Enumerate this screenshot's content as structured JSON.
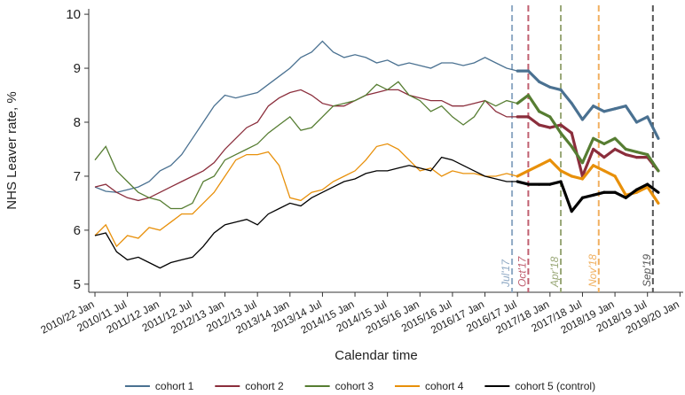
{
  "chart_data": {
    "type": "line",
    "y_label": "NHS Leaver rate, %",
    "x_label": "Calendar time",
    "x": [
      0,
      2,
      4,
      6,
      8,
      10,
      12,
      14,
      16,
      18,
      20,
      22,
      24,
      26,
      28,
      30,
      32,
      34,
      36,
      38,
      40,
      42,
      44,
      46,
      48,
      50,
      52,
      54,
      56,
      58,
      60,
      62,
      64,
      66,
      68,
      70,
      72,
      74,
      76,
      78,
      80,
      82,
      84,
      86,
      88,
      90,
      92,
      94,
      96,
      98,
      100,
      102,
      104
    ],
    "series": [
      {
        "name": "cohort 1",
        "color": "#4a7191",
        "values": [
          6.8,
          6.72,
          6.7,
          6.75,
          6.8,
          6.9,
          7.1,
          7.2,
          7.4,
          7.7,
          8.0,
          8.3,
          8.5,
          8.45,
          8.5,
          8.55,
          8.7,
          8.85,
          9.0,
          9.2,
          9.3,
          9.5,
          9.3,
          9.2,
          9.25,
          9.2,
          9.1,
          9.15,
          9.05,
          9.1,
          9.05,
          9.0,
          9.1,
          9.1,
          9.05,
          9.1,
          9.2,
          9.1,
          9.0,
          8.95,
          8.95,
          8.75,
          8.65,
          8.6,
          8.35,
          8.05,
          8.3,
          8.2,
          8.25,
          8.3,
          8.0,
          8.1,
          7.7
        ]
      },
      {
        "name": "cohort 2",
        "color": "#8b2e3c",
        "values": [
          6.8,
          6.85,
          6.7,
          6.6,
          6.55,
          6.6,
          6.7,
          6.8,
          6.9,
          7.0,
          7.1,
          7.25,
          7.5,
          7.7,
          7.9,
          8.0,
          8.3,
          8.45,
          8.55,
          8.6,
          8.5,
          8.35,
          8.3,
          8.3,
          8.4,
          8.5,
          8.55,
          8.6,
          8.6,
          8.5,
          8.45,
          8.4,
          8.4,
          8.3,
          8.3,
          8.35,
          8.4,
          8.2,
          8.1,
          8.1,
          8.1,
          7.95,
          7.9,
          7.95,
          7.8,
          7.0,
          7.5,
          7.35,
          7.5,
          7.4,
          7.35,
          7.35,
          7.1
        ]
      },
      {
        "name": "cohort 3",
        "color": "#567d32",
        "values": [
          7.3,
          7.55,
          7.1,
          6.9,
          6.7,
          6.6,
          6.55,
          6.4,
          6.4,
          6.5,
          6.9,
          7.0,
          7.3,
          7.4,
          7.5,
          7.6,
          7.8,
          7.95,
          8.1,
          7.85,
          7.9,
          8.1,
          8.3,
          8.35,
          8.4,
          8.5,
          8.7,
          8.6,
          8.75,
          8.5,
          8.4,
          8.2,
          8.3,
          8.1,
          7.95,
          8.1,
          8.4,
          8.3,
          8.4,
          8.35,
          8.5,
          8.2,
          8.1,
          7.8,
          7.55,
          7.25,
          7.7,
          7.6,
          7.7,
          7.5,
          7.45,
          7.4,
          7.1
        ]
      },
      {
        "name": "cohort 4",
        "color": "#e8900a",
        "values": [
          5.9,
          6.1,
          5.7,
          5.9,
          5.85,
          6.05,
          6.0,
          6.15,
          6.3,
          6.3,
          6.5,
          6.7,
          7.0,
          7.3,
          7.4,
          7.4,
          7.45,
          7.2,
          6.6,
          6.55,
          6.7,
          6.75,
          6.9,
          7.0,
          7.1,
          7.3,
          7.55,
          7.6,
          7.5,
          7.3,
          7.1,
          7.15,
          7.0,
          7.1,
          7.05,
          7.05,
          7.0,
          7.0,
          7.05,
          7.0,
          7.1,
          7.2,
          7.3,
          7.1,
          7.0,
          6.95,
          7.2,
          7.1,
          7.0,
          6.65,
          6.7,
          6.8,
          6.5
        ]
      },
      {
        "name": "cohort 5 (control)",
        "color": "#000000",
        "values": [
          5.9,
          5.95,
          5.6,
          5.45,
          5.5,
          5.4,
          5.3,
          5.4,
          5.45,
          5.5,
          5.7,
          5.95,
          6.1,
          6.15,
          6.2,
          6.1,
          6.3,
          6.4,
          6.5,
          6.45,
          6.6,
          6.7,
          6.8,
          6.9,
          6.95,
          7.05,
          7.1,
          7.1,
          7.15,
          7.2,
          7.15,
          7.1,
          7.35,
          7.3,
          7.2,
          7.1,
          7.0,
          6.95,
          6.9,
          6.9,
          6.85,
          6.85,
          6.85,
          6.9,
          6.35,
          6.6,
          6.65,
          6.7,
          6.7,
          6.6,
          6.75,
          6.85,
          6.7
        ]
      }
    ],
    "annotations": [
      {
        "x": 77,
        "label": "Jul'17",
        "color": "#8fa9c4"
      },
      {
        "x": 80,
        "label": "Oct'17",
        "color": "#c06070"
      },
      {
        "x": 86,
        "label": "Apr'18",
        "color": "#9aa878"
      },
      {
        "x": 93,
        "label": "Nov'18",
        "color": "#f0b060"
      },
      {
        "x": 103,
        "label": "Sep'19",
        "color": "#555555"
      }
    ],
    "xlim": [
      -1.15,
      108.6
    ],
    "xticks": [
      {
        "value": 0,
        "label": "2010/22 Jan"
      },
      {
        "value": 6,
        "label": "2010/11 Jul"
      },
      {
        "value": 12,
        "label": "2011/12 Jan"
      },
      {
        "value": 18,
        "label": "2011/12 Jul"
      },
      {
        "value": 24,
        "label": "2012/13 Jan"
      },
      {
        "value": 30,
        "label": "2012/13 Jul"
      },
      {
        "value": 36,
        "label": "2013/14 Jan"
      },
      {
        "value": 42,
        "label": "2013/14 Jul"
      },
      {
        "value": 48,
        "label": "2014/15 Jan"
      },
      {
        "value": 54,
        "label": "2014/15 Jul"
      },
      {
        "value": 60,
        "label": "2015/16 Jan"
      },
      {
        "value": 66,
        "label": "2015/16 Jul"
      },
      {
        "value": 72,
        "label": "2016/17 Jan"
      },
      {
        "value": 78,
        "label": "2016/17 Jul"
      },
      {
        "value": 84,
        "label": "2017/18 Jan"
      },
      {
        "value": 90,
        "label": "2017/18 Jul"
      },
      {
        "value": 96,
        "label": "2018/19 Jan"
      },
      {
        "value": 102,
        "label": "2018/19 Jul"
      },
      {
        "value": 108,
        "label": "2019/20 Jan"
      }
    ],
    "ylim": [
      4.85,
      10.1
    ],
    "yticks": [
      5,
      6,
      7,
      8,
      9,
      10
    ],
    "grid": false,
    "legend": "bottom"
  }
}
